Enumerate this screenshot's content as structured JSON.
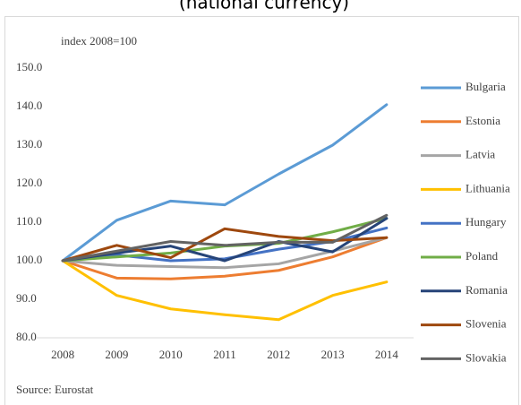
{
  "chart_data": {
    "type": "line",
    "title": "(national currency)",
    "y_label": "index 2008=100",
    "source": "Source: Eurostat",
    "categories": [
      "2008",
      "2009",
      "2010",
      "2011",
      "2012",
      "2013",
      "2014"
    ],
    "ylim": [
      80,
      150
    ],
    "yticks": [
      {
        "value": 80,
        "label": "80.0"
      },
      {
        "value": 90,
        "label": "90.0"
      },
      {
        "value": 100,
        "label": "100.0"
      },
      {
        "value": 110,
        "label": "110.0"
      },
      {
        "value": 120,
        "label": "120.0"
      },
      {
        "value": 130,
        "label": "130.0"
      },
      {
        "value": 140,
        "label": "140.0"
      },
      {
        "value": 150,
        "label": "150.0"
      }
    ],
    "grid": false,
    "legend": "right",
    "series": [
      {
        "name": "Bulgaria",
        "color": "#5b9bd5",
        "values": [
          100,
          110.5,
          115.5,
          114.5,
          122.5,
          130,
          140.5
        ]
      },
      {
        "name": "Estonia",
        "color": "#ed7d31",
        "values": [
          100,
          95.5,
          95.3,
          96,
          97.5,
          101,
          106
        ]
      },
      {
        "name": "Latvia",
        "color": "#a5a5a5",
        "values": [
          100,
          98.8,
          98.5,
          98.2,
          99.2,
          102.5,
          106
        ]
      },
      {
        "name": "Lithuania",
        "color": "#ffc000",
        "values": [
          100,
          91,
          87.5,
          86,
          84.7,
          91,
          94.5
        ]
      },
      {
        "name": "Hungary",
        "color": "#4472c4",
        "values": [
          100,
          101.5,
          100,
          100.5,
          103,
          105,
          108.5
        ]
      },
      {
        "name": "Poland",
        "color": "#70ad47",
        "values": [
          100,
          101,
          102,
          103.8,
          104.5,
          107.5,
          111
        ]
      },
      {
        "name": "Romania",
        "color": "#264478",
        "values": [
          100,
          102,
          103.8,
          100,
          105,
          102.3,
          111
        ]
      },
      {
        "name": "Slovenia",
        "color": "#9e480e",
        "values": [
          100,
          104,
          100.8,
          108.3,
          106.3,
          105.2,
          106
        ]
      },
      {
        "name": "Slovakia",
        "color": "#636363",
        "values": [
          100,
          102.5,
          105,
          104,
          104.8,
          104.8,
          111.8
        ]
      }
    ]
  }
}
